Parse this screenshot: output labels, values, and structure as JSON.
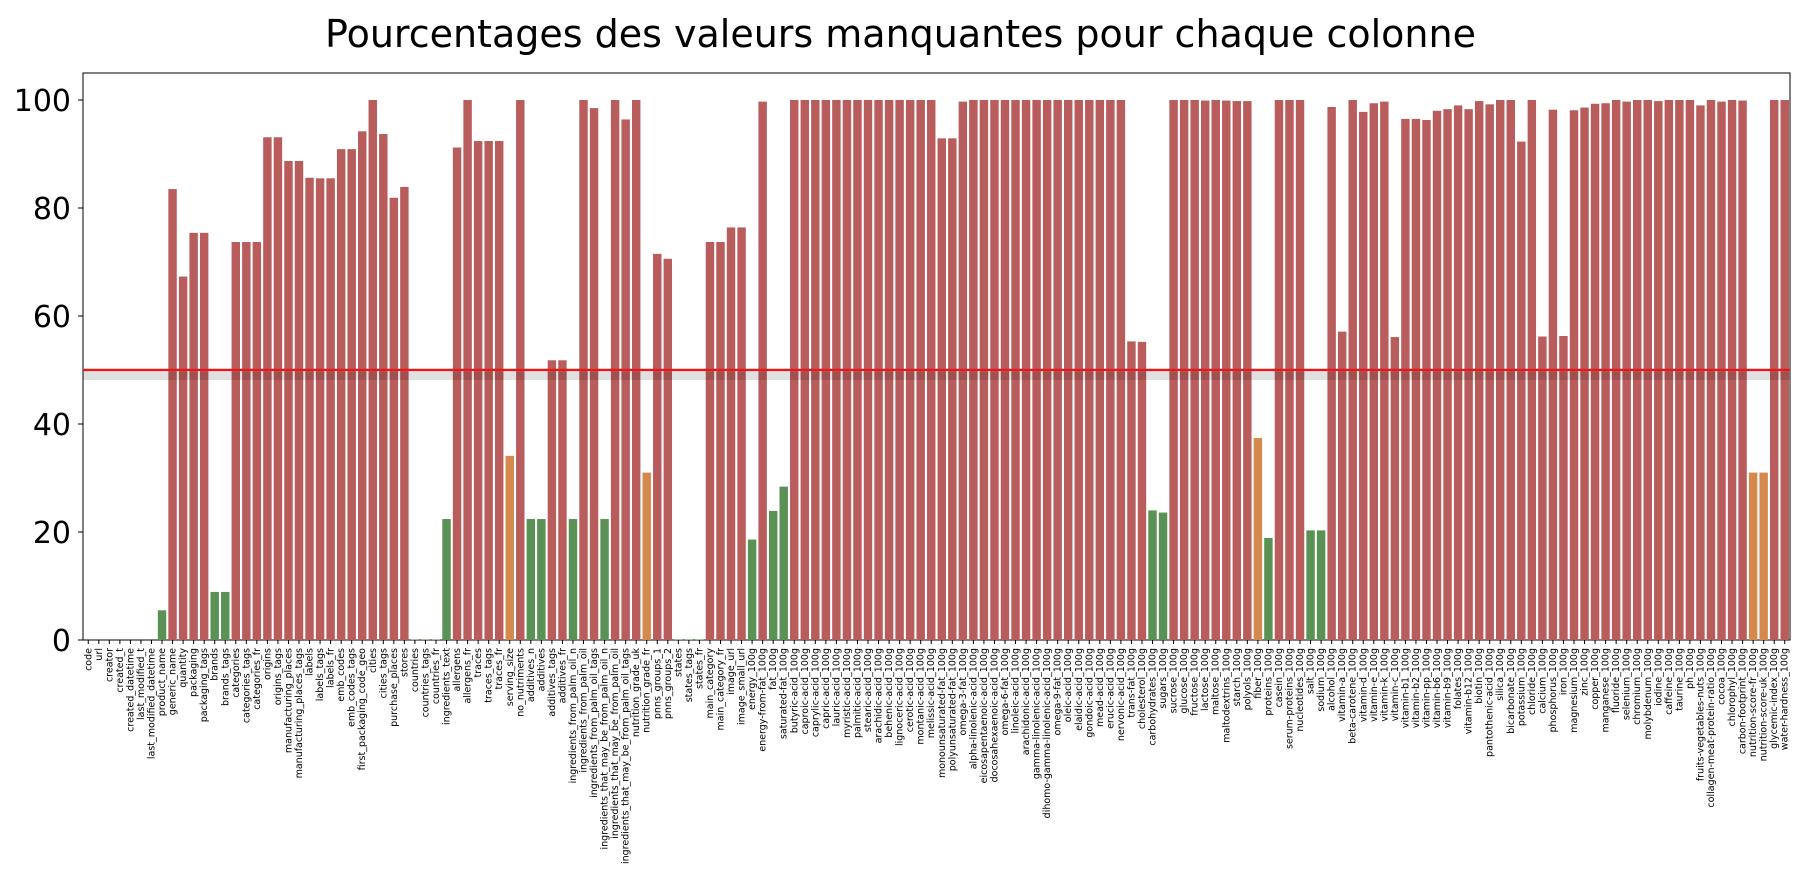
{
  "chart_data": {
    "type": "bar",
    "title": "Pourcentages des valeurs manquantes pour chaque colonne",
    "xlabel": "",
    "ylabel": "",
    "ylim": [
      0,
      105
    ],
    "yticks": [
      0,
      20,
      40,
      60,
      80,
      100
    ],
    "grid": false,
    "threshold_line": {
      "value": 50,
      "color": "#e31a1c"
    },
    "color_rule": {
      "high": "#b85c5c",
      "medium": "#d4894d",
      "low": "#5a9155"
    },
    "categories": [
      "code",
      "url",
      "creator",
      "created_t",
      "created_datetime",
      "last_modified_t",
      "last_modified_datetime",
      "product_name",
      "generic_name",
      "quantity",
      "packaging",
      "packaging_tags",
      "brands",
      "brands_tags",
      "categories",
      "categories_tags",
      "categories_fr",
      "origins",
      "origins_tags",
      "manufacturing_places",
      "manufacturing_places_tags",
      "labels",
      "labels_tags",
      "labels_fr",
      "emb_codes",
      "emb_codes_tags",
      "first_packaging_code_geo",
      "cities",
      "cities_tags",
      "purchase_places",
      "stores",
      "countries",
      "countries_tags",
      "countries_fr",
      "ingredients_text",
      "allergens",
      "allergens_fr",
      "traces",
      "traces_tags",
      "traces_fr",
      "serving_size",
      "no_nutriments",
      "additives_n",
      "additives",
      "additives_tags",
      "additives_fr",
      "ingredients_from_palm_oil_n",
      "ingredients_from_palm_oil",
      "ingredients_from_palm_oil_tags",
      "ingredients_that_may_be_from_palm_oil_n",
      "ingredients_that_may_be_from_palm_oil",
      "ingredients_that_may_be_from_palm_oil_tags",
      "nutrition_grade_uk",
      "nutrition_grade_fr",
      "pnns_groups_1",
      "pnns_groups_2",
      "states",
      "states_tags",
      "states_fr",
      "main_category",
      "main_category_fr",
      "image_url",
      "image_small_url",
      "energy_100g",
      "energy-from-fat_100g",
      "fat_100g",
      "saturated-fat_100g",
      "butyric-acid_100g",
      "caproic-acid_100g",
      "caprylic-acid_100g",
      "capric-acid_100g",
      "lauric-acid_100g",
      "myristic-acid_100g",
      "palmitic-acid_100g",
      "stearic-acid_100g",
      "arachidic-acid_100g",
      "behenic-acid_100g",
      "lignoceric-acid_100g",
      "cerotic-acid_100g",
      "montanic-acid_100g",
      "melissic-acid_100g",
      "monounsaturated-fat_100g",
      "polyunsaturated-fat_100g",
      "omega-3-fat_100g",
      "alpha-linolenic-acid_100g",
      "eicosapentaenoic-acid_100g",
      "docosahexaenoic-acid_100g",
      "omega-6-fat_100g",
      "linoleic-acid_100g",
      "arachidonic-acid_100g",
      "gamma-linolenic-acid_100g",
      "dihomo-gamma-linolenic-acid_100g",
      "omega-9-fat_100g",
      "oleic-acid_100g",
      "elaidic-acid_100g",
      "gondoic-acid_100g",
      "mead-acid_100g",
      "erucic-acid_100g",
      "nervonic-acid_100g",
      "trans-fat_100g",
      "cholesterol_100g",
      "carbohydrates_100g",
      "sugars_100g",
      "sucrose_100g",
      "glucose_100g",
      "fructose_100g",
      "lactose_100g",
      "maltose_100g",
      "maltodextrins_100g",
      "starch_100g",
      "polyols_100g",
      "fiber_100g",
      "proteins_100g",
      "casein_100g",
      "serum-proteins_100g",
      "nucleotides_100g",
      "salt_100g",
      "sodium_100g",
      "alcohol_100g",
      "vitamin-a_100g",
      "beta-carotene_100g",
      "vitamin-d_100g",
      "vitamin-e_100g",
      "vitamin-k_100g",
      "vitamin-c_100g",
      "vitamin-b1_100g",
      "vitamin-b2_100g",
      "vitamin-pp_100g",
      "vitamin-b6_100g",
      "vitamin-b9_100g",
      "folates_100g",
      "vitamin-b12_100g",
      "biotin_100g",
      "pantothenic-acid_100g",
      "silica_100g",
      "bicarbonate_100g",
      "potassium_100g",
      "chloride_100g",
      "calcium_100g",
      "phosphorus_100g",
      "iron_100g",
      "magnesium_100g",
      "zinc_100g",
      "copper_100g",
      "manganese_100g",
      "fluoride_100g",
      "selenium_100g",
      "chromium_100g",
      "molybdenum_100g",
      "iodine_100g",
      "caffeine_100g",
      "taurine_100g",
      "ph_100g",
      "fruits-vegetables-nuts_100g",
      "collagen-meat-protein-ratio_100g",
      "cocoa_100g",
      "chlorophyl_100g",
      "carbon-footprint_100g",
      "nutrition-score-fr_100g",
      "nutrition-score-uk_100g",
      "glycemic-index_100g",
      "water-hardness_100g"
    ],
    "values": [
      0,
      0,
      0,
      0,
      0,
      0,
      0,
      5.5,
      83.5,
      67.3,
      75.4,
      75.4,
      8.9,
      8.9,
      73.7,
      73.7,
      73.7,
      93.1,
      93.1,
      88.7,
      88.7,
      85.6,
      85.5,
      85.5,
      90.9,
      90.9,
      94.2,
      100,
      93.7,
      81.9,
      83.9,
      0.1,
      0.1,
      0.1,
      22.4,
      91.2,
      100,
      92.4,
      92.4,
      92.4,
      34.1,
      100,
      22.4,
      22.4,
      51.8,
      51.8,
      22.4,
      100,
      98.5,
      22.4,
      100,
      96.4,
      100,
      31.0,
      71.5,
      70.6,
      0.1,
      0.1,
      0.1,
      73.7,
      73.7,
      76.4,
      76.4,
      18.6,
      99.7,
      23.9,
      28.4,
      100,
      100,
      100,
      100,
      100,
      100,
      100,
      100,
      100,
      100,
      100,
      100,
      100,
      100,
      92.9,
      92.9,
      99.7,
      100,
      100,
      100,
      100,
      100,
      100,
      100,
      100,
      100,
      100,
      100,
      100,
      100,
      100,
      100,
      55.3,
      55.2,
      24.0,
      23.6,
      100,
      100,
      100,
      99.9,
      100,
      99.9,
      99.8,
      99.8,
      37.4,
      18.9,
      100,
      100,
      100,
      20.3,
      20.3,
      98.7,
      57.1,
      100,
      97.8,
      99.4,
      99.7,
      56.1,
      96.5,
      96.5,
      96.3,
      98.0,
      98.3,
      99.0,
      98.3,
      99.8,
      99.2,
      100,
      100,
      92.3,
      100,
      56.2,
      98.2,
      56.3,
      98.1,
      98.6,
      99.3,
      99.4,
      100,
      99.7,
      100,
      100,
      99.8,
      100,
      100,
      100,
      99.0,
      100,
      99.7,
      100,
      99.9,
      31.0,
      31.0,
      100,
      100
    ]
  }
}
